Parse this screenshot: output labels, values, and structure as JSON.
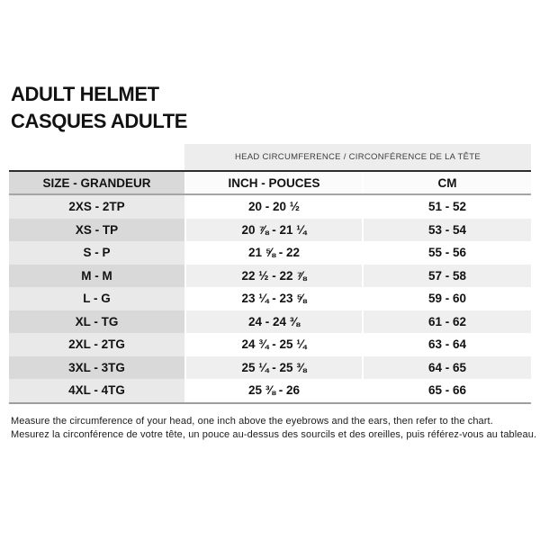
{
  "title": {
    "line1": "ADULT HELMET",
    "line2": "CASQUES ADULTE"
  },
  "table": {
    "banner": "HEAD CIRCUMFERENCE / CIRCONFÉRENCE DE LA TÊTE",
    "columns": [
      "SIZE - GRANDEUR",
      "INCH - POUCES",
      "CM"
    ],
    "rows": [
      {
        "size": "2XS - 2TP",
        "inch": "20 - 20 ½",
        "cm": "51 - 52"
      },
      {
        "size": "XS - TP",
        "inch": "20 ⅞ - 21 ¼",
        "cm": "53 - 54"
      },
      {
        "size": "S - P",
        "inch": "21 ⅝ - 22",
        "cm": "55 - 56"
      },
      {
        "size": "M - M",
        "inch": "22 ½ - 22 ⅞",
        "cm": "57 - 58"
      },
      {
        "size": "L - G",
        "inch": "23 ¼ - 23 ⅝",
        "cm": "59 - 60"
      },
      {
        "size": "XL - TG",
        "inch": "24 - 24 ⅜",
        "cm": "61 - 62"
      },
      {
        "size": "2XL - 2TG",
        "inch": "24 ¾ - 25 ¼",
        "cm": "63 - 64"
      },
      {
        "size": "3XL - 3TG",
        "inch": "25 ¼ - 25 ⅜",
        "cm": "64 - 65"
      },
      {
        "size": "4XL - 4TG",
        "inch": "25 ⅜ - 26",
        "cm": "65 - 66"
      }
    ]
  },
  "footer": {
    "en": "Measure the circumference of your head, one inch above the eyebrows and the ears, then refer to the chart.",
    "fr": "Mesurez la circonférence de votre tête, un pouce au-dessus des sourcils et des oreilles, puis référez-vous au tableau."
  },
  "colors": {
    "banner_bg": "#ededed",
    "header_size_bg": "#d9d9d9",
    "row_size_bg": "#e9e9e9",
    "row_size_alt_bg": "#d9d9d9",
    "row_data_bg": "#ffffff",
    "row_data_alt_bg": "#efefef",
    "border_dark": "#2d2d2d",
    "border_gray": "#9e9e9e",
    "text": "#121212"
  }
}
